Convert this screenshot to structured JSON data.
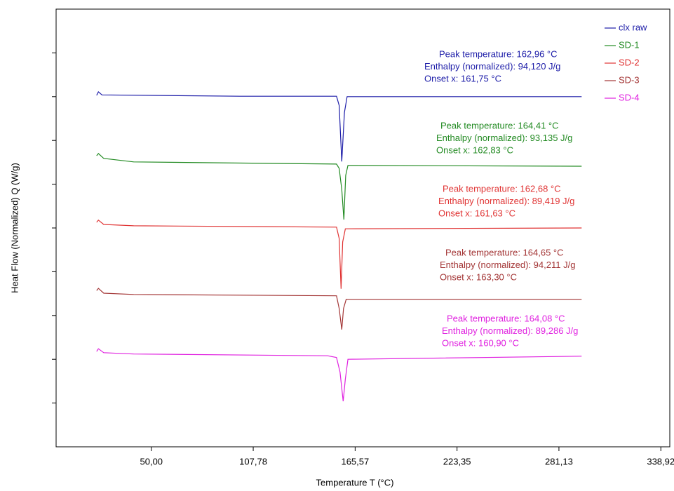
{
  "chart_data": {
    "type": "line",
    "xlabel": "Temperature T (°C)",
    "ylabel": "Heat Flow (Normalized) Q (W/g)",
    "xlim": [
      -4,
      344
    ],
    "xticks": [
      {
        "value": 50,
        "label": "50,00"
      },
      {
        "value": 107.78,
        "label": "107,78"
      },
      {
        "value": 165.57,
        "label": "165,57"
      },
      {
        "value": 223.35,
        "label": "223,35"
      },
      {
        "value": 281.13,
        "label": "281,13"
      },
      {
        "value": 338.92,
        "label": "338,92"
      }
    ],
    "ylim": [
      0,
      10
    ],
    "yticks": [
      1,
      2,
      3,
      4,
      5,
      6,
      7,
      8,
      9
    ],
    "legend": "upper right",
    "series": [
      {
        "name": "clx raw",
        "color": "#1c1ca8",
        "x": [
          19,
          20,
          22,
          100,
          155,
          156.5,
          158,
          159.5,
          161,
          294
        ],
        "values": [
          8.03,
          8.11,
          8.04,
          8.01,
          8.01,
          7.8,
          6.52,
          7.64,
          8.0,
          8.0
        ],
        "annotation": [
          "Peak temperature: 162,96 °C",
          "Enthalpy (normalized): 94,120 J/g",
          "Onset x: 161,75 °C"
        ]
      },
      {
        "name": "SD-1",
        "color": "#238b23",
        "x": [
          19,
          20,
          23,
          40,
          155,
          156.5,
          158,
          159.2,
          160.2,
          161.5,
          294
        ],
        "values": [
          6.65,
          6.7,
          6.59,
          6.51,
          6.46,
          6.36,
          5.88,
          5.19,
          6.2,
          6.43,
          6.41
        ],
        "annotation": [
          "Peak temperature: 164,41 °C",
          "Enthalpy (normalized): 93,135 J/g",
          "Onset x: 162,83 °C"
        ]
      },
      {
        "name": "SD-2",
        "color": "#e03333",
        "x": [
          19,
          20,
          23,
          40,
          155,
          156.5,
          157.6,
          158.5,
          160,
          294
        ],
        "values": [
          5.13,
          5.18,
          5.08,
          5.05,
          5.02,
          4.76,
          3.61,
          4.68,
          4.98,
          5.0
        ],
        "annotation": [
          "Peak temperature: 162,68 °C",
          "Enthalpy (normalized): 89,419 J/g",
          "Onset x: 161,63 °C"
        ]
      },
      {
        "name": "SD-3",
        "color": "#a33535",
        "x": [
          19,
          20,
          23,
          40,
          155,
          156.5,
          158,
          159,
          160.5,
          294
        ],
        "values": [
          3.57,
          3.62,
          3.51,
          3.48,
          3.45,
          3.16,
          2.68,
          3.16,
          3.37,
          3.37
        ],
        "annotation": [
          "Peak temperature: 164,65 °C",
          "Enthalpy (normalized): 94,211 J/g",
          "Onset x: 163,30 °C"
        ]
      },
      {
        "name": "SD-4",
        "color": "#e022e0",
        "x": [
          19,
          20,
          23,
          40,
          150,
          155,
          157,
          158.8,
          160,
          161.5,
          294
        ],
        "values": [
          2.18,
          2.24,
          2.15,
          2.12,
          2.08,
          2.04,
          1.71,
          1.04,
          1.55,
          2.0,
          2.07
        ],
        "annotation": [
          "Peak temperature: 164,08 °C",
          "Enthalpy (normalized): 89,286 J/g",
          "Onset x: 160,90 °C"
        ]
      }
    ]
  }
}
